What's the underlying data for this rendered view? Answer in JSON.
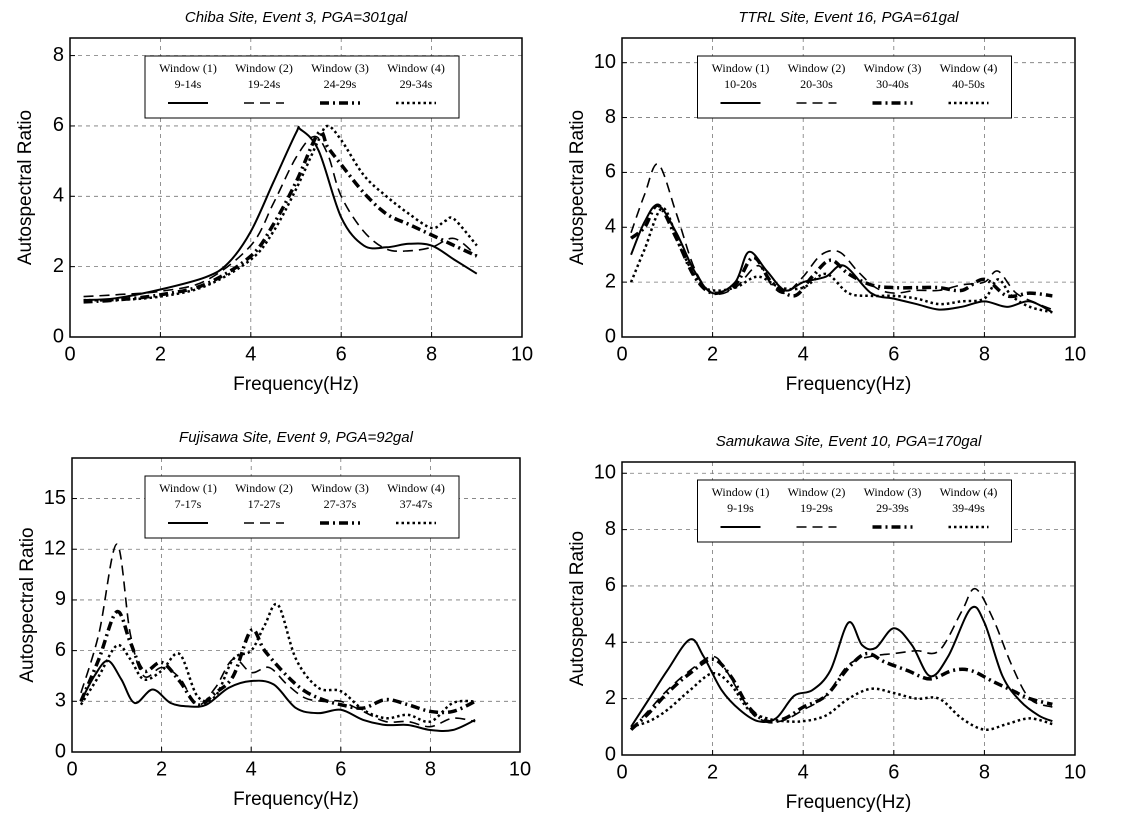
{
  "chart_data": [
    {
      "type": "line",
      "title": "Chiba Site, Event 3, PGA=301gal",
      "x_label": "Frequency(Hz)",
      "y_label": "Autospectral Ratio",
      "xlim": [
        0,
        10
      ],
      "ylim": [
        0,
        8.5
      ],
      "xticks": [
        0,
        2,
        4,
        6,
        8,
        10
      ],
      "yticks": [
        0,
        2,
        4,
        6,
        8
      ],
      "grid": true,
      "legend": "top",
      "series": [
        {
          "name": "Window (1)",
          "period": "9-14s",
          "color": "#000000",
          "dash": "solid",
          "x": [
            0.3,
            1,
            2,
            3,
            3.5,
            4,
            4.5,
            5,
            5.1,
            5.5,
            6,
            6.5,
            7,
            7.5,
            8,
            8.5,
            9
          ],
          "values": [
            1.05,
            1.1,
            1.35,
            1.7,
            2.1,
            3.0,
            4.4,
            5.8,
            5.9,
            5.3,
            3.4,
            2.6,
            2.55,
            2.65,
            2.6,
            2.2,
            1.8
          ]
        },
        {
          "name": "Window (2)",
          "period": "19-24s",
          "color": "#000000",
          "dash": "dashed",
          "x": [
            0.3,
            1,
            2,
            3,
            4,
            4.5,
            5,
            5.4,
            5.7,
            6,
            6.5,
            7,
            7.5,
            8,
            8.5,
            9
          ],
          "values": [
            1.15,
            1.2,
            1.3,
            1.6,
            2.6,
            3.8,
            5.1,
            5.7,
            5.2,
            4.0,
            3.0,
            2.5,
            2.45,
            2.55,
            2.8,
            2.3
          ]
        },
        {
          "name": "Window (3)",
          "period": "24-29s",
          "color": "#000000",
          "dash": "dashdot",
          "x": [
            0.3,
            1,
            2,
            3,
            4,
            4.5,
            5,
            5.5,
            5.7,
            6,
            6.5,
            7,
            7.5,
            8,
            8.5,
            9
          ],
          "values": [
            1.0,
            1.05,
            1.2,
            1.5,
            2.3,
            3.2,
            4.4,
            5.8,
            5.4,
            4.9,
            4.1,
            3.5,
            3.2,
            2.9,
            2.6,
            2.3
          ]
        },
        {
          "name": "Window (4)",
          "period": "29-34s",
          "color": "#000000",
          "dash": "dotted",
          "x": [
            0.3,
            1,
            2,
            3,
            4,
            4.5,
            5,
            5.5,
            5.7,
            6,
            6.5,
            7,
            7.5,
            8,
            8.3,
            8.5,
            9
          ],
          "values": [
            1.05,
            1.05,
            1.15,
            1.45,
            2.2,
            3.0,
            4.2,
            5.6,
            6.0,
            5.6,
            4.6,
            4.0,
            3.5,
            3.1,
            3.3,
            3.35,
            2.6
          ]
        }
      ]
    },
    {
      "type": "line",
      "title": "TTRL Site, Event 16, PGA=61gal",
      "x_label": "Frequency(Hz)",
      "y_label": "Autospectral Ratio",
      "xlim": [
        0,
        10
      ],
      "ylim": [
        0,
        10.9
      ],
      "xticks": [
        0,
        2,
        4,
        6,
        8,
        10
      ],
      "yticks": [
        0,
        2,
        4,
        6,
        8,
        10
      ],
      "grid": true,
      "legend": "top",
      "series": [
        {
          "name": "Window (1)",
          "period": "10-20s",
          "color": "#000000",
          "dash": "solid",
          "x": [
            0.2,
            0.5,
            0.8,
            1.2,
            1.6,
            2,
            2.5,
            2.8,
            3.2,
            3.6,
            4,
            4.5,
            4.9,
            5.5,
            6,
            6.5,
            7,
            7.5,
            8,
            8.5,
            9,
            9.5
          ],
          "values": [
            3.0,
            4.2,
            4.8,
            3.8,
            2.4,
            1.6,
            2.0,
            3.1,
            2.4,
            1.7,
            2.0,
            2.2,
            2.6,
            1.6,
            1.4,
            1.2,
            1.0,
            1.1,
            1.3,
            1.1,
            1.3,
            0.9
          ]
        },
        {
          "name": "Window (2)",
          "period": "20-30s",
          "color": "#000000",
          "dash": "dashed",
          "x": [
            0.2,
            0.5,
            0.8,
            1.2,
            1.6,
            2,
            2.5,
            3,
            3.3,
            3.6,
            4,
            4.4,
            4.8,
            5.2,
            5.6,
            6,
            6.5,
            7,
            7.5,
            8,
            8.3,
            8.7,
            9.2,
            9.5
          ],
          "values": [
            3.8,
            5.2,
            6.3,
            4.5,
            2.5,
            1.6,
            1.8,
            2.6,
            1.9,
            1.6,
            2.2,
            3.0,
            3.1,
            2.4,
            1.8,
            1.6,
            1.7,
            1.7,
            1.9,
            2.0,
            2.4,
            1.6,
            1.2,
            1.0
          ]
        },
        {
          "name": "Window (3)",
          "period": "30-40s",
          "color": "#000000",
          "dash": "dashdot",
          "x": [
            0.2,
            0.5,
            0.8,
            1.2,
            1.6,
            2,
            2.5,
            2.9,
            3.3,
            3.8,
            4.2,
            4.6,
            5,
            5.5,
            6,
            6.5,
            7,
            7.5,
            8,
            8.5,
            9,
            9.5
          ],
          "values": [
            3.6,
            4.0,
            4.8,
            3.6,
            2.2,
            1.6,
            1.9,
            2.9,
            2.0,
            1.5,
            2.2,
            2.8,
            2.3,
            1.9,
            1.8,
            1.8,
            1.8,
            1.7,
            2.1,
            1.5,
            1.6,
            1.5
          ]
        },
        {
          "name": "Window (4)",
          "period": "40-50s",
          "color": "#000000",
          "dash": "dotted",
          "x": [
            0.2,
            0.5,
            0.9,
            1.3,
            1.7,
            2,
            2.5,
            3,
            3.5,
            4,
            4.5,
            5,
            5.5,
            6,
            6.5,
            7,
            7.5,
            8,
            8.3,
            8.6,
            9,
            9.5
          ],
          "values": [
            2.0,
            3.2,
            4.7,
            3.2,
            2.0,
            1.7,
            1.8,
            2.2,
            1.8,
            1.8,
            2.3,
            1.6,
            1.5,
            1.5,
            1.4,
            1.2,
            1.3,
            1.4,
            2.1,
            1.5,
            1.1,
            0.9
          ]
        }
      ]
    },
    {
      "type": "line",
      "title": "Fujisawa Site, Event 9, PGA=92gal",
      "x_label": "Frequency(Hz)",
      "y_label": "Autospectral Ratio",
      "xlim": [
        0,
        10
      ],
      "ylim": [
        0,
        17.4
      ],
      "xticks": [
        0,
        2,
        4,
        6,
        8,
        10
      ],
      "yticks": [
        0,
        3,
        6,
        9,
        12,
        15
      ],
      "grid": true,
      "legend": "top",
      "series": [
        {
          "name": "Window (1)",
          "period": "7-17s",
          "color": "#000000",
          "dash": "solid",
          "x": [
            0.2,
            0.5,
            0.8,
            1.1,
            1.4,
            1.8,
            2.2,
            2.6,
            3,
            3.5,
            4,
            4.5,
            5,
            5.5,
            6,
            6.5,
            7,
            7.5,
            8,
            8.5,
            9
          ],
          "values": [
            3.0,
            4.5,
            5.4,
            4.3,
            2.9,
            3.7,
            2.9,
            2.7,
            2.8,
            3.8,
            4.2,
            4.0,
            2.6,
            2.3,
            2.5,
            1.9,
            1.6,
            1.6,
            1.3,
            1.3,
            1.9
          ]
        },
        {
          "name": "Window (2)",
          "period": "17-27s",
          "color": "#000000",
          "dash": "dashed",
          "x": [
            0.2,
            0.6,
            1,
            1.3,
            1.6,
            2,
            2.4,
            2.8,
            3.2,
            3.6,
            4,
            4.4,
            4.8,
            5.2,
            5.6,
            6,
            6.5,
            7,
            7.5,
            8,
            8.5,
            9
          ],
          "values": [
            3.5,
            7.0,
            12.3,
            7.0,
            4.5,
            5.0,
            4.4,
            2.8,
            3.8,
            5.5,
            4.7,
            5.0,
            4.0,
            3.2,
            3.0,
            3.0,
            2.4,
            1.8,
            1.8,
            1.5,
            2.0,
            1.8
          ]
        },
        {
          "name": "Window (3)",
          "period": "27-37s",
          "color": "#000000",
          "dash": "dashdot",
          "x": [
            0.2,
            0.6,
            1,
            1.3,
            1.6,
            2,
            2.4,
            2.8,
            3.2,
            3.6,
            4,
            4.3,
            4.8,
            5.2,
            5.6,
            6,
            6.5,
            7,
            7.5,
            8,
            8.5,
            9
          ],
          "values": [
            3.0,
            5.5,
            8.3,
            6.5,
            4.8,
            5.3,
            4.2,
            2.8,
            3.5,
            4.5,
            7.2,
            6.0,
            4.5,
            3.6,
            3.1,
            2.8,
            2.6,
            3.1,
            2.8,
            2.4,
            2.4,
            3.0
          ]
        },
        {
          "name": "Window (4)",
          "period": "37-47s",
          "color": "#000000",
          "dash": "dotted",
          "x": [
            0.2,
            0.6,
            1,
            1.3,
            1.6,
            2,
            2.4,
            2.8,
            3.2,
            3.6,
            4,
            4.3,
            4.6,
            5,
            5.5,
            6,
            6.5,
            7,
            7.5,
            8,
            8.5,
            9
          ],
          "values": [
            2.8,
            4.5,
            6.3,
            5.5,
            4.3,
            4.8,
            5.8,
            3.3,
            3.3,
            5.5,
            6.0,
            7.5,
            8.7,
            5.5,
            3.8,
            3.6,
            2.5,
            2.0,
            2.2,
            1.8,
            2.9,
            3.0
          ]
        }
      ]
    },
    {
      "type": "line",
      "title": "Samukawa Site, Event 10, PGA=170gal",
      "x_label": "Frequency(Hz)",
      "y_label": "Autospectral Ratio",
      "xlim": [
        0,
        10
      ],
      "ylim": [
        0,
        10.4
      ],
      "xticks": [
        0,
        2,
        4,
        6,
        8,
        10
      ],
      "yticks": [
        0,
        2,
        4,
        6,
        8,
        10
      ],
      "grid": true,
      "legend": "top",
      "series": [
        {
          "name": "Window (1)",
          "period": "9-19s",
          "color": "#000000",
          "dash": "solid",
          "x": [
            0.2,
            0.6,
            1,
            1.5,
            1.8,
            2.2,
            2.6,
            3,
            3.4,
            3.8,
            4.2,
            4.6,
            5,
            5.3,
            5.6,
            6,
            6.4,
            6.8,
            7.2,
            7.7,
            8,
            8.4,
            8.8,
            9.2,
            9.5
          ],
          "values": [
            1.0,
            2.0,
            3.0,
            4.1,
            3.5,
            2.3,
            1.6,
            1.2,
            1.3,
            2.1,
            2.3,
            3.0,
            4.7,
            3.9,
            3.8,
            4.5,
            3.9,
            2.8,
            3.5,
            5.2,
            4.7,
            2.8,
            1.9,
            1.4,
            1.2
          ]
        },
        {
          "name": "Window (2)",
          "period": "19-29s",
          "color": "#000000",
          "dash": "dashed",
          "x": [
            0.2,
            0.6,
            1,
            1.5,
            2,
            2.3,
            2.7,
            3,
            3.5,
            4,
            4.5,
            5,
            5.5,
            6,
            6.5,
            7,
            7.5,
            7.8,
            8.2,
            8.6,
            9,
            9.5
          ],
          "values": [
            0.9,
            1.6,
            2.3,
            3.0,
            3.5,
            3.0,
            1.9,
            1.3,
            1.2,
            1.6,
            2.1,
            3.2,
            3.5,
            3.6,
            3.7,
            3.7,
            5.1,
            5.9,
            4.8,
            3.2,
            2.0,
            1.7
          ]
        },
        {
          "name": "Window (3)",
          "period": "29-39s",
          "color": "#000000",
          "dash": "dashdot",
          "x": [
            0.2,
            0.6,
            1,
            1.5,
            2,
            2.4,
            2.8,
            3.2,
            3.6,
            4,
            4.5,
            5,
            5.4,
            5.8,
            6.3,
            6.8,
            7.3,
            7.7,
            8.2,
            8.6,
            9,
            9.5
          ],
          "values": [
            0.9,
            1.5,
            2.2,
            2.9,
            3.4,
            2.8,
            1.7,
            1.2,
            1.3,
            1.7,
            2.1,
            3.1,
            3.6,
            3.3,
            3.0,
            2.7,
            3.0,
            3.0,
            2.6,
            2.3,
            2.0,
            1.8
          ]
        },
        {
          "name": "Window (4)",
          "period": "39-49s",
          "color": "#000000",
          "dash": "dotted",
          "x": [
            0.2,
            0.6,
            1,
            1.5,
            2,
            2.4,
            2.8,
            3.2,
            3.6,
            4,
            4.5,
            5,
            5.5,
            6,
            6.5,
            7,
            7.5,
            8,
            8.5,
            9,
            9.5
          ],
          "values": [
            1.0,
            1.2,
            1.6,
            2.3,
            2.9,
            2.5,
            1.6,
            1.3,
            1.2,
            1.2,
            1.4,
            2.0,
            2.35,
            2.2,
            2.0,
            2.0,
            1.3,
            0.9,
            1.1,
            1.3,
            1.1
          ]
        }
      ]
    }
  ]
}
